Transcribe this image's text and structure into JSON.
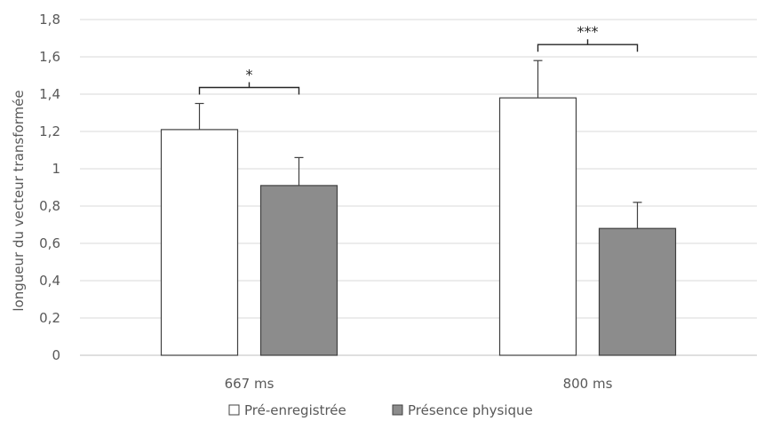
{
  "chart_data": {
    "type": "bar",
    "categories": [
      "667 ms",
      "800 ms"
    ],
    "series": [
      {
        "name": "Pré-enregistrée",
        "values": [
          1.21,
          1.38
        ],
        "errors": [
          0.14,
          0.2
        ],
        "color": "#ffffff"
      },
      {
        "name": "Présence physique",
        "values": [
          0.91,
          0.68
        ],
        "errors": [
          0.15,
          0.14
        ],
        "color": "#8c8c8c"
      }
    ],
    "ylabel": "longueur du vecteur transformée",
    "xlabel": "",
    "ylim": [
      0,
      1.8
    ],
    "yticks": [
      "0",
      "0,2",
      "0,4",
      "0,6",
      "0,8",
      "1",
      "1,2",
      "1,4",
      "1,6",
      "1,8"
    ],
    "grid": true,
    "legend_position": "bottom",
    "annotations": [
      "*",
      "***"
    ]
  }
}
